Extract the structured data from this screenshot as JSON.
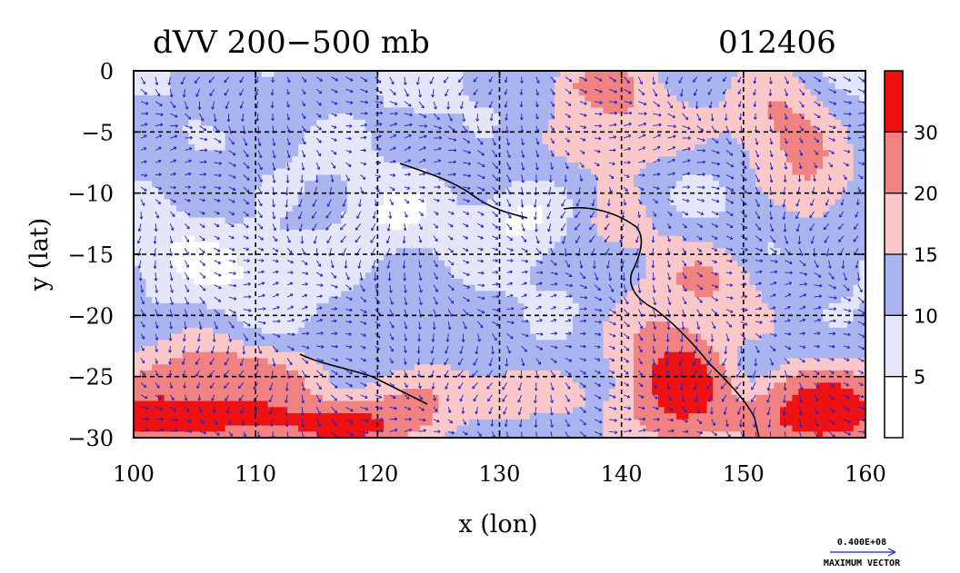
{
  "chart_data": {
    "type": "heatmap",
    "title": "dVV 200−500 mb",
    "date_label": "012406",
    "xlabel": "x (lon)",
    "ylabel": "y (lat)",
    "xlim": [
      100,
      160
    ],
    "ylim": [
      -30,
      0
    ],
    "x_ticks": [
      100,
      110,
      120,
      130,
      140,
      150,
      160
    ],
    "y_ticks": [
      0,
      -5,
      -10,
      -15,
      -20,
      -25,
      -30
    ],
    "y_tick_labels": [
      "0",
      "−5",
      "−10",
      "−15",
      "−20",
      "−25",
      "−30"
    ],
    "grid": true,
    "colorbar": {
      "levels": [
        5,
        10,
        15,
        20,
        30
      ],
      "colors": [
        "#ffffff",
        "#e6e6fa",
        "#aab4ee",
        "#fac8c8",
        "#f08282",
        "#ee1111"
      ]
    },
    "vector_legend": {
      "value": "0.400E+08",
      "label": "MAXIMUM VECTOR",
      "color": "#2222cc"
    }
  }
}
